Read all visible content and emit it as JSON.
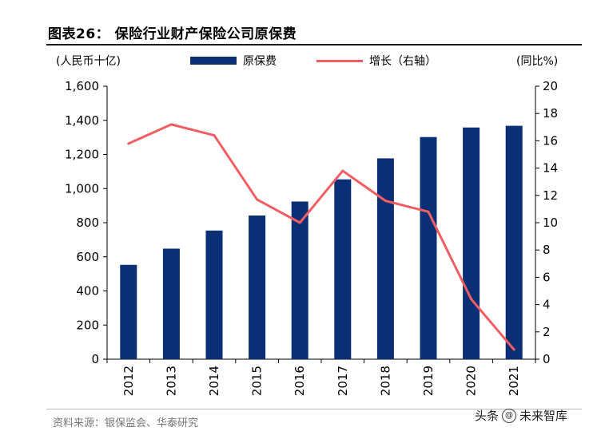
{
  "title": "图表26：   保险行业财产保险公司原保费",
  "left_unit": "(人民币十亿)",
  "right_unit": "(同比%)",
  "legend": {
    "bar_label": "原保费",
    "line_label": "增长（右轴）"
  },
  "source": "资料来源：银保监会、华泰研究",
  "watermark": {
    "prefix": "头条",
    "icon": "at-icon",
    "name": "未来智库"
  },
  "colors": {
    "bar": "#0b2f74",
    "line": "#f25e63"
  },
  "chart_data": {
    "type": "bar",
    "categories": [
      "2012",
      "2013",
      "2014",
      "2015",
      "2016",
      "2017",
      "2018",
      "2019",
      "2020",
      "2021"
    ],
    "series": [
      {
        "name": "原保费",
        "type": "bar",
        "axis": "left",
        "values": [
          553,
          648,
          754,
          842,
          924,
          1054,
          1177,
          1302,
          1358,
          1368
        ]
      },
      {
        "name": "增长（右轴）",
        "type": "line",
        "axis": "right",
        "values": [
          15.8,
          17.2,
          16.4,
          11.7,
          10.0,
          13.8,
          11.6,
          10.8,
          4.4,
          0.7
        ]
      }
    ],
    "y_left": {
      "min": 0,
      "max": 1600,
      "step": 200,
      "tick_labels": [
        "0",
        "200",
        "400",
        "600",
        "800",
        "1,000",
        "1,200",
        "1,400",
        "1,600"
      ]
    },
    "y_right": {
      "min": 0,
      "max": 20,
      "step": 2,
      "tick_labels": [
        "0",
        "2",
        "4",
        "6",
        "8",
        "10",
        "12",
        "14",
        "16",
        "18",
        "20"
      ]
    },
    "grid": false
  }
}
